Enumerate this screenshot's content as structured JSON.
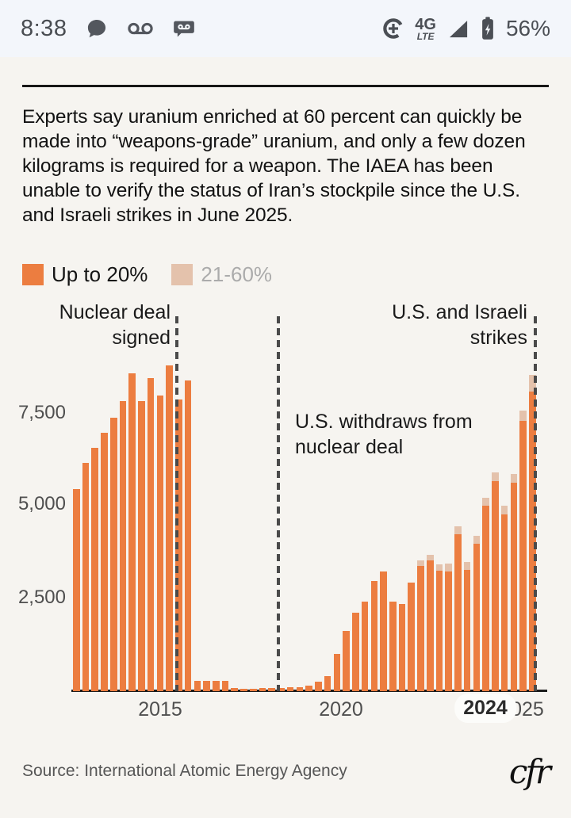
{
  "status_bar": {
    "time": "8:38",
    "network": "4G",
    "network_sub": "LTE",
    "battery_pct": "56%",
    "icons": [
      "chat-bubble-icon",
      "voicemail-icon",
      "voicemail-message-icon",
      "data-saver-icon",
      "signal-strength-icon",
      "battery-charging-icon"
    ]
  },
  "intro": {
    "text": "Experts say uranium enriched at 60 percent can quickly be made into “weapons-grade” uranium, and only a few dozen kilograms is required for a weapon. The IAEA has been unable to verify the status of Iran’s stockpile since the U.S. and Israeli strikes in June 2025."
  },
  "legend": {
    "items": [
      {
        "label": "Up to 20%",
        "color": "#EC7D40"
      },
      {
        "label": "21-60%",
        "color": "#E4C2AC"
      }
    ]
  },
  "chart_data": {
    "type": "bar",
    "stacked": true,
    "grid": false,
    "legend_position": "top-left",
    "ylim": [
      0,
      9100
    ],
    "y_ticks_numeric": [
      2500,
      5000,
      7500
    ],
    "y_tick_labels": [
      "7,500",
      "5,000",
      "2,500"
    ],
    "x_tick_labels": [
      {
        "label": "2015"
      },
      {
        "label": "2020"
      },
      {
        "label": "2024",
        "highlighted": true
      },
      {
        "label": "2025"
      }
    ],
    "annotations": [
      {
        "text": "Nuclear deal\nsigned",
        "align": "right-of-line-1"
      },
      {
        "text": "U.S. withdraws from\nnuclear deal",
        "align": "right-of-line-2"
      },
      {
        "text": "U.S. and Israeli\nstrikes",
        "align": "left-of-line-3"
      }
    ],
    "series": [
      {
        "name": "Up to 20%",
        "color": "#EC7D40",
        "values": [
          5400,
          6100,
          6500,
          6900,
          7300,
          7750,
          8500,
          7750,
          8370,
          7900,
          8700,
          7800,
          8300,
          280,
          280,
          280,
          280,
          80,
          70,
          70,
          80,
          90,
          90,
          100,
          110,
          140,
          250,
          400,
          1000,
          1600,
          2100,
          2400,
          2950,
          3200,
          2400,
          2330,
          2900,
          3340,
          3490,
          3230,
          3200,
          4190,
          3240,
          3950,
          4950,
          5610,
          4735,
          5575,
          7230,
          8000
        ]
      },
      {
        "name": "21-60%",
        "color": "#E4C2AC",
        "values": [
          0,
          0,
          0,
          0,
          0,
          0,
          0,
          0,
          0,
          0,
          0,
          0,
          0,
          0,
          0,
          0,
          0,
          0,
          0,
          0,
          0,
          0,
          0,
          0,
          0,
          0,
          0,
          0,
          0,
          0,
          0,
          0,
          0,
          0,
          0,
          0,
          0,
          150,
          150,
          150,
          210,
          210,
          210,
          210,
          230,
          240,
          230,
          240,
          280,
          460
        ]
      }
    ]
  },
  "footer": {
    "source": "Source: International Atomic Energy Agency",
    "logo_text": "cfr"
  }
}
